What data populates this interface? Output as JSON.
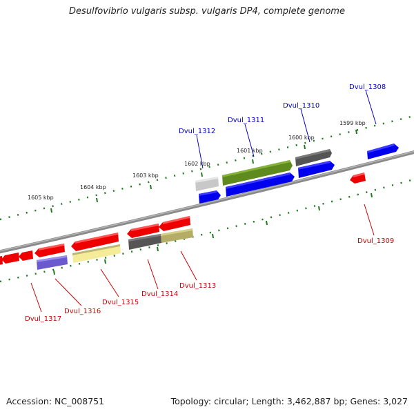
{
  "title": "Desulfovibrio vulgaris subsp. vulgaris DP4, complete genome",
  "footer": {
    "accession": "Accession: NC_008751",
    "summary": "Topology: circular; Length: 3,462,887 bp; Genes: 3,027"
  },
  "colors": {
    "forward_label": "#0000cc",
    "reverse_label": "#cc0000",
    "tick": "#1f7a1f",
    "backbone": "#8a8a8a"
  },
  "scale_labels": [
    "1605 kbp",
    "1604 kbp",
    "1603 kbp",
    "1602 kbp",
    "1601 kbp",
    "1600 kbp",
    "1599 kbp"
  ],
  "gene_labels": {
    "forward": [
      "Dvul_1312",
      "Dvul_1311",
      "Dvul_1310",
      "Dvul_1308"
    ],
    "reverse": [
      "Dvul_1317",
      "Dvul_1316",
      "Dvul_1315",
      "Dvul_1314",
      "Dvul_1313",
      "Dvul_1309"
    ]
  },
  "legend": {}
}
